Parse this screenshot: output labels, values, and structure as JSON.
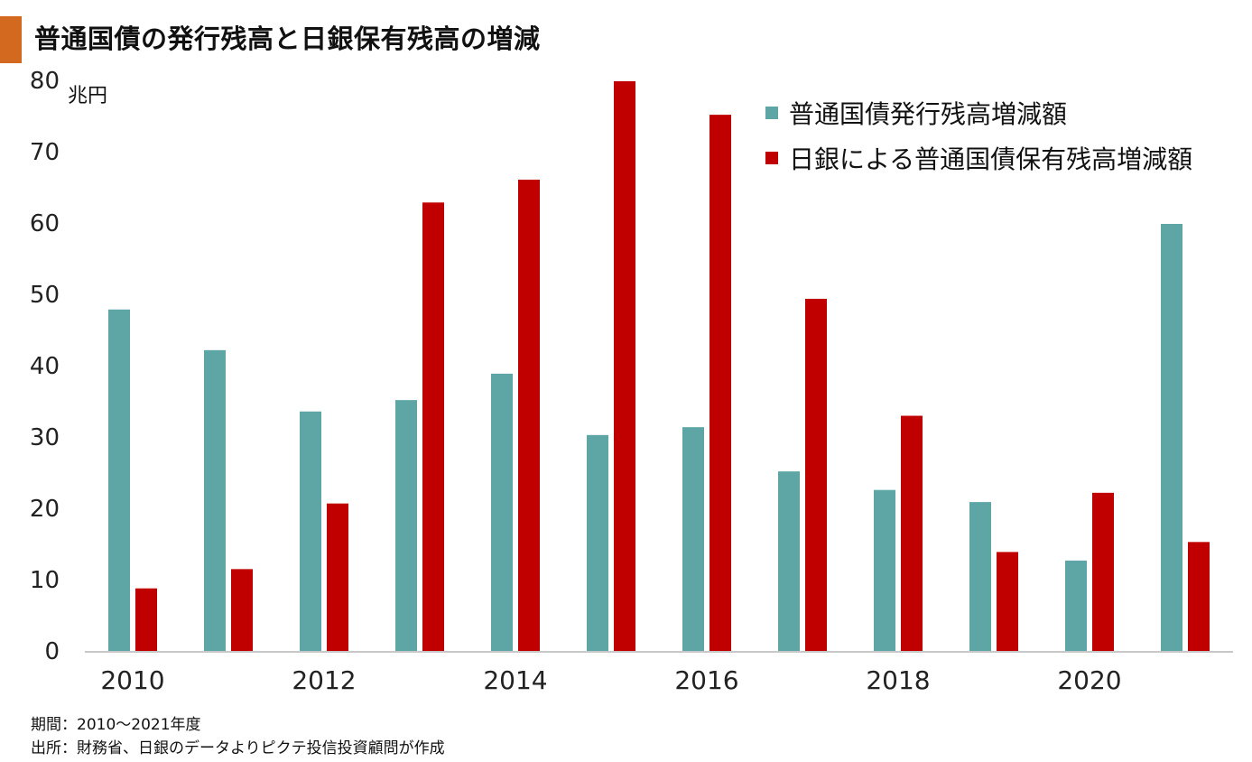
{
  "title": "普通国債の発行残高と日銀保有残高の増減",
  "notes": {
    "period": "期間：2010～2021年度",
    "source": "出所：財務省、日銀のデータよりピクテ投信投資顧問が作成"
  },
  "colors": {
    "teal": "#5ea6a6",
    "red": "#c00000",
    "accent": "#d2691e"
  },
  "chart_data": {
    "type": "bar",
    "ylabel": "兆円",
    "ylim": [
      0,
      80
    ],
    "yticks": [
      "0",
      "10",
      "20",
      "30",
      "40",
      "50",
      "60",
      "70",
      "80"
    ],
    "categories": [
      "2010",
      "2011",
      "2012",
      "2013",
      "2014",
      "2015",
      "2016",
      "2017",
      "2018",
      "2019",
      "2020",
      "2021"
    ],
    "xtick_labels": [
      "2010",
      "2012",
      "2014",
      "2016",
      "2018",
      "2020"
    ],
    "legend_position": "top-right",
    "series": [
      {
        "name": "普通国債発行残高増減額",
        "color": "#5ea6a6",
        "values": [
          48.0,
          42.3,
          33.7,
          35.3,
          39.0,
          30.4,
          31.5,
          25.3,
          22.7,
          21.0,
          12.8,
          60.0
        ]
      },
      {
        "name": "日銀による普通国債保有残高増減額",
        "color": "#c00000",
        "values": [
          8.9,
          11.6,
          20.8,
          63.0,
          66.2,
          80.0,
          75.3,
          49.5,
          33.1,
          14.0,
          22.3,
          15.4
        ]
      }
    ]
  }
}
